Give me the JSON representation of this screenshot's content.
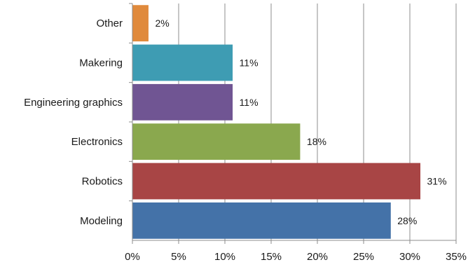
{
  "chart_data": {
    "type": "bar",
    "orientation": "horizontal",
    "title": "",
    "xlabel": "",
    "ylabel": "",
    "categories": [
      "Other",
      "Makering",
      "Engineering graphics",
      "Electronics",
      "Robotics",
      "Modeling"
    ],
    "values": [
      1.7,
      10.8,
      10.8,
      18.1,
      31.1,
      27.9
    ],
    "data_labels": [
      "2%",
      "11%",
      "11%",
      "18%",
      "31%",
      "28%"
    ],
    "colors": [
      "#e08a3c",
      "#3e9cb3",
      "#705593",
      "#8aa84e",
      "#a84545",
      "#4472a8"
    ],
    "xlim": [
      0,
      35
    ],
    "xticks": [
      "0%",
      "5%",
      "10%",
      "15%",
      "20%",
      "25%",
      "30%",
      "35%"
    ],
    "grid": "vertical",
    "legend": "none"
  }
}
